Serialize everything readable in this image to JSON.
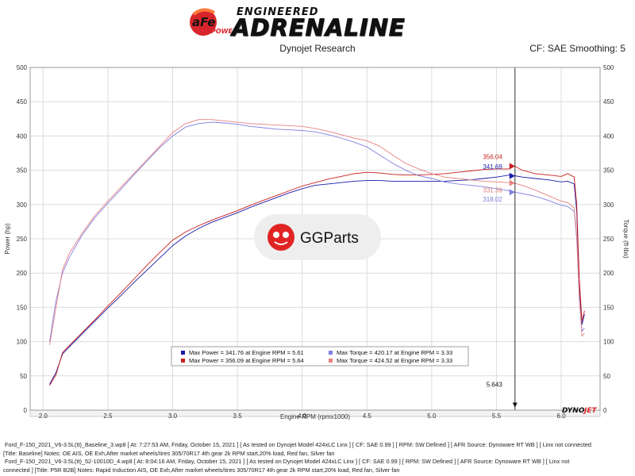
{
  "header": {
    "brand_small": "ENGINEERED",
    "brand_large": "ADRENALINE",
    "logo_text": "aFe",
    "logo_sub": "POWER",
    "report_title": "Dynojet Research",
    "settings": "CF: SAE Smoothing: 5"
  },
  "watermark": {
    "text": "GGParts"
  },
  "footer": {
    "run1_line1": "Ford_F-150_2021_V6-3.5L(tt)_Baseline_3.wp8 [ At: 7:27:53 AM, Friday, October 15, 2021 ] [ As tested on Dynojet Model 424xLC Linx ] [ CF: SAE 0.99 ] [ RPM: SW Defined ] [ AFR Source: Dynoware RT WB ] [ Linx not connected",
    "run1_line2": "[Title: Baseline]  Notes: OE AIS, OE Exh,After market wheels/tires 305/70R17 4th gear 2k RPM start,20% load, Red fan, Silver fan",
    "run2_line1": "Ford_F-150_2021_V6-3.5L(tt)_52-10010D_4.wp8 [ At: 8:04:16 AM, Friday, October 15, 2021 ] [ As tested on Dynojet Model 424xLC Linx ] [ CF: SAE 0.99 ] [ RPM: SW Defined ] [ AFR Source: Dynoware RT WB ] [ Linx not",
    "run2_line2": "connected ] [Title: P5R B2B]  Notes: Rapid Induction AIS, OE Exh,After market wheels/tires 305/70R17 4th gear 2k RPM start,20% load, Red fan, Silver fan",
    "run1_color": "#1a1aa8",
    "run2_color": "#c81e1e"
  },
  "chart_data": {
    "type": "line",
    "xlabel": "Engine RPM (rpmx1000)",
    "ylabel_left": "Power (hp)",
    "ylabel_right": "Torque (ft-lbs)",
    "xlim": [
      1.9,
      6.3
    ],
    "ylim": [
      0,
      500
    ],
    "xticks": [
      "2.0",
      "2.5",
      "3.0",
      "3.5",
      "4.0",
      "4.5",
      "5.0",
      "5.5",
      "6.0"
    ],
    "yticks": [
      "0",
      "50",
      "100",
      "150",
      "200",
      "250",
      "300",
      "350",
      "400",
      "450",
      "500"
    ],
    "cursor": {
      "x": 5.643,
      "label": "5.643"
    },
    "cursor_labels": [
      {
        "text": "356.04",
        "value": 356.04,
        "color": "#c81e1e"
      },
      {
        "text": "341.69",
        "value": 341.69,
        "color": "#1a1aa8"
      },
      {
        "text": "331.39",
        "value": 331.39,
        "color": "#e88080"
      },
      {
        "text": "318.02",
        "value": 318.02,
        "color": "#8080e0"
      }
    ],
    "legend": [
      {
        "text": "Max Power = 341.76 at Engine RPM = 5.61",
        "color": "#1a1aa8"
      },
      {
        "text": "Max Torque = 420.17 at Engine RPM = 3.33",
        "color": "#8080e0"
      },
      {
        "text": "Max Power = 356.09 at Engine RPM = 5.64",
        "color": "#c81e1e"
      },
      {
        "text": "Max Torque = 424.52 at Engine RPM = 3.33",
        "color": "#e88080"
      }
    ],
    "series": [
      {
        "color": "#1a1aa8",
        "x": [
          2.05,
          2.1,
          2.15,
          2.2,
          2.3,
          2.4,
          2.5,
          2.6,
          2.7,
          2.8,
          2.9,
          3.0,
          3.1,
          3.2,
          3.3,
          3.4,
          3.5,
          3.6,
          3.7,
          3.8,
          3.9,
          4.0,
          4.1,
          4.2,
          4.3,
          4.4,
          4.5,
          4.6,
          4.7,
          4.8,
          4.9,
          5.0,
          5.1,
          5.2,
          5.3,
          5.4,
          5.5,
          5.6,
          5.64,
          5.7,
          5.8,
          5.9,
          6.0,
          6.05,
          6.1,
          6.12,
          6.14,
          6.16,
          6.18
        ],
        "y": [
          38,
          55,
          82,
          92,
          111,
          130,
          149,
          167,
          186,
          204,
          222,
          240,
          254,
          265,
          274,
          281,
          288,
          296,
          303,
          310,
          317,
          323,
          328,
          330,
          332,
          334,
          335,
          335,
          334,
          334,
          334,
          334,
          334,
          335,
          336,
          338,
          340,
          343,
          342,
          340,
          338,
          336,
          333,
          334,
          330,
          290,
          180,
          125,
          140
        ]
      },
      {
        "color": "#c81e1e",
        "x": [
          2.05,
          2.1,
          2.15,
          2.2,
          2.3,
          2.4,
          2.5,
          2.6,
          2.7,
          2.8,
          2.9,
          3.0,
          3.1,
          3.2,
          3.3,
          3.4,
          3.5,
          3.6,
          3.7,
          3.8,
          3.9,
          4.0,
          4.1,
          4.2,
          4.3,
          4.4,
          4.5,
          4.6,
          4.7,
          4.8,
          4.9,
          5.0,
          5.1,
          5.2,
          5.3,
          5.4,
          5.5,
          5.6,
          5.64,
          5.7,
          5.8,
          5.9,
          6.0,
          6.05,
          6.1,
          6.12,
          6.14,
          6.16,
          6.18
        ],
        "y": [
          36,
          52,
          84,
          94,
          113,
          132,
          152,
          171,
          191,
          211,
          230,
          248,
          260,
          269,
          277,
          284,
          291,
          299,
          306,
          313,
          320,
          327,
          332,
          337,
          341,
          345,
          347,
          346,
          344,
          343,
          343,
          344,
          345,
          347,
          349,
          351,
          352,
          352,
          356,
          350,
          345,
          343,
          341,
          345,
          340,
          300,
          190,
          130,
          145
        ]
      },
      {
        "color": "#8080e0",
        "x": [
          2.05,
          2.1,
          2.15,
          2.2,
          2.3,
          2.4,
          2.5,
          2.6,
          2.7,
          2.8,
          2.9,
          3.0,
          3.1,
          3.2,
          3.3,
          3.4,
          3.5,
          3.6,
          3.7,
          3.8,
          3.9,
          4.0,
          4.1,
          4.2,
          4.3,
          4.4,
          4.5,
          4.6,
          4.7,
          4.8,
          4.9,
          5.0,
          5.1,
          5.2,
          5.3,
          5.4,
          5.5,
          5.6,
          5.64,
          5.7,
          5.8,
          5.9,
          6.0,
          6.05,
          6.1,
          6.12,
          6.14,
          6.16,
          6.18
        ],
        "y": [
          100,
          160,
          200,
          222,
          255,
          281,
          302,
          322,
          343,
          363,
          383,
          400,
          413,
          418,
          420,
          419,
          417,
          414,
          412,
          410,
          409,
          408,
          406,
          402,
          397,
          391,
          384,
          372,
          360,
          350,
          342,
          338,
          333,
          330,
          328,
          326,
          323,
          320,
          318,
          316,
          312,
          306,
          299,
          297,
          290,
          250,
          160,
          115,
          120
        ]
      },
      {
        "color": "#e88080",
        "x": [
          2.05,
          2.1,
          2.15,
          2.2,
          2.3,
          2.4,
          2.5,
          2.6,
          2.7,
          2.8,
          2.9,
          3.0,
          3.1,
          3.2,
          3.3,
          3.4,
          3.5,
          3.6,
          3.7,
          3.8,
          3.9,
          4.0,
          4.1,
          4.2,
          4.3,
          4.4,
          4.5,
          4.6,
          4.7,
          4.8,
          4.9,
          5.0,
          5.1,
          5.2,
          5.3,
          5.4,
          5.5,
          5.6,
          5.64,
          5.7,
          5.8,
          5.9,
          6.0,
          6.05,
          6.1,
          6.12,
          6.14,
          6.16,
          6.18
        ],
        "y": [
          95,
          150,
          205,
          228,
          258,
          284,
          305,
          325,
          345,
          365,
          385,
          405,
          418,
          424,
          424,
          422,
          420,
          418,
          417,
          416,
          415,
          414,
          411,
          407,
          402,
          397,
          393,
          385,
          372,
          360,
          352,
          345,
          340,
          338,
          336,
          334,
          333,
          332,
          331,
          328,
          321,
          313,
          305,
          303,
          295,
          255,
          165,
          108,
          112
        ]
      }
    ]
  }
}
